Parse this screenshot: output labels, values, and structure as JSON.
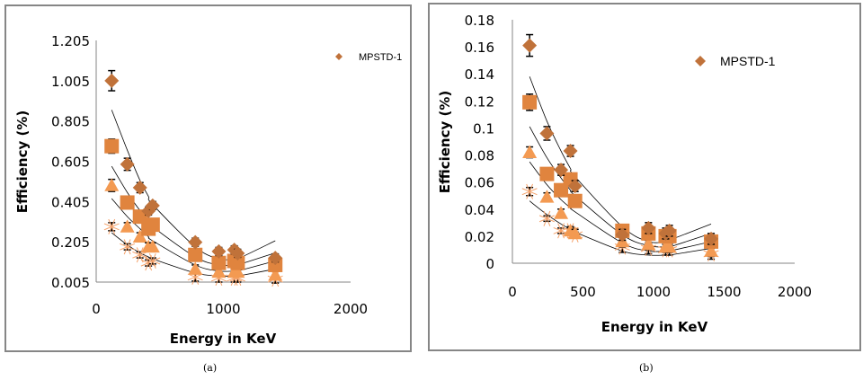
{
  "captions": {
    "a": "(a)",
    "b": "(b)"
  },
  "chart_data": [
    {
      "id": "a",
      "type": "scatter",
      "title": "",
      "xlabel": "Energy in KeV",
      "ylabel": "Efficiency (%)",
      "xlim": [
        0,
        2000
      ],
      "ylim": [
        0.005,
        1.205
      ],
      "xticks": [
        0,
        1000,
        2000
      ],
      "xtick_labels": [
        "0",
        "1000",
        "2000"
      ],
      "yticks": [
        0.005,
        0.205,
        0.405,
        0.605,
        0.805,
        1.005,
        1.205
      ],
      "ytick_labels": [
        "0.005",
        "0.205",
        "0.405",
        "0.605",
        "0.805",
        "1.005",
        "1.205"
      ],
      "grid": false,
      "legend": {
        "position": "top-right",
        "entries": [
          "MPSTD-1"
        ]
      },
      "x": [
        121.8,
        244.7,
        344.3,
        411.1,
        444.0,
        778.9,
        964.1,
        1085.8,
        1112.1,
        1408.0
      ],
      "series": [
        {
          "name": "MPSTD-1",
          "marker": "diamond",
          "color": "#c0723a",
          "values": [
            1.005,
            0.59,
            0.474,
            0.358,
            0.385,
            0.203,
            0.157,
            0.165,
            0.148,
            0.125
          ],
          "errors": [
            0.05,
            0.03,
            0.025,
            0.02,
            0.02,
            0.02,
            0.02,
            0.02,
            0.02,
            0.02
          ],
          "fit": [
            0.86,
            0.66,
            0.51,
            0.43,
            0.39,
            0.18,
            0.12,
            0.12,
            0.12,
            0.21
          ]
        },
        {
          "name": "",
          "marker": "square",
          "color": "#e0843e",
          "values": [
            0.68,
            0.4,
            0.33,
            0.27,
            0.29,
            0.14,
            0.1,
            0.11,
            0.1,
            0.09
          ],
          "errors": [
            0.035,
            0.02,
            0.02,
            0.02,
            0.02,
            0.02,
            0.02,
            0.02,
            0.02,
            0.02
          ],
          "fit": [
            0.58,
            0.45,
            0.36,
            0.31,
            0.28,
            0.13,
            0.09,
            0.09,
            0.09,
            0.15
          ]
        },
        {
          "name": "",
          "marker": "triangle",
          "color": "#f39a52",
          "values": [
            0.485,
            0.28,
            0.23,
            0.18,
            0.18,
            0.07,
            0.055,
            0.055,
            0.055,
            0.04
          ],
          "errors": [
            0.03,
            0.02,
            0.02,
            0.02,
            0.02,
            0.02,
            0.02,
            0.02,
            0.02,
            0.02
          ],
          "fit": [
            0.42,
            0.33,
            0.27,
            0.23,
            0.21,
            0.09,
            0.06,
            0.06,
            0.06,
            0.11
          ]
        },
        {
          "name": "",
          "marker": "asterisk",
          "color": "#f5a26a",
          "values": [
            0.28,
            0.18,
            0.14,
            0.1,
            0.11,
            0.03,
            0.025,
            0.025,
            0.025,
            0.02
          ],
          "errors": [
            0.02,
            0.015,
            0.015,
            0.015,
            0.015,
            0.02,
            0.02,
            0.02,
            0.02,
            0.02
          ],
          "fit": [
            0.25,
            0.19,
            0.15,
            0.13,
            0.12,
            0.05,
            0.035,
            0.035,
            0.035,
            0.07
          ]
        }
      ]
    },
    {
      "id": "b",
      "type": "scatter",
      "title": "",
      "xlabel": "Energy in KeV",
      "ylabel": "Efficiency (%)",
      "xlim": [
        0,
        2000
      ],
      "ylim": [
        0,
        0.18
      ],
      "xticks": [
        0,
        500,
        1000,
        1500,
        2000
      ],
      "xtick_labels": [
        "0",
        "500",
        "1000",
        "1500",
        "2000"
      ],
      "yticks": [
        0,
        0.02,
        0.04,
        0.06,
        0.08,
        0.1,
        0.12,
        0.14,
        0.16,
        0.18
      ],
      "ytick_labels": [
        "0",
        "0.02",
        "0.04",
        "0.06",
        "0.08",
        "0.1",
        "0.12",
        "0.14",
        "0.16",
        "0.18"
      ],
      "grid": false,
      "legend": {
        "position": "top-right",
        "entries": [
          "MPSTD-1"
        ]
      },
      "x": [
        121.8,
        244.7,
        344.3,
        411.1,
        444.0,
        778.9,
        964.1,
        1085.8,
        1112.1,
        1408.0
      ],
      "series": [
        {
          "name": "MPSTD-1",
          "marker": "diamond",
          "color": "#c0723a",
          "values": [
            0.161,
            0.096,
            0.069,
            0.083,
            0.057,
            0.021,
            0.026,
            0.022,
            0.024,
            0.018
          ],
          "errors": [
            0.008,
            0.005,
            0.004,
            0.004,
            0.004,
            0.004,
            0.004,
            0.004,
            0.004,
            0.004
          ],
          "fit": [
            0.138,
            0.105,
            0.083,
            0.07,
            0.064,
            0.027,
            0.016,
            0.016,
            0.017,
            0.029
          ]
        },
        {
          "name": "",
          "marker": "square",
          "color": "#e0843e",
          "values": [
            0.119,
            0.066,
            0.054,
            0.062,
            0.046,
            0.024,
            0.022,
            0.02,
            0.02,
            0.016
          ],
          "errors": [
            0.006,
            0.004,
            0.004,
            0.004,
            0.004,
            0.004,
            0.004,
            0.004,
            0.004,
            0.004
          ],
          "fit": [
            0.101,
            0.078,
            0.063,
            0.054,
            0.05,
            0.021,
            0.013,
            0.012,
            0.012,
            0.022
          ]
        },
        {
          "name": "",
          "marker": "triangle",
          "color": "#f39a52",
          "values": [
            0.082,
            0.049,
            0.037,
            0.024,
            0.022,
            0.016,
            0.014,
            0.012,
            0.012,
            0.009
          ],
          "errors": [
            0.004,
            0.003,
            0.003,
            0.003,
            0.003,
            0.004,
            0.004,
            0.004,
            0.004,
            0.004
          ],
          "fit": [
            0.075,
            0.058,
            0.047,
            0.041,
            0.038,
            0.015,
            0.009,
            0.009,
            0.009,
            0.016
          ]
        },
        {
          "name": "",
          "marker": "asterisk",
          "color": "#f5a26a",
          "values": [
            0.053,
            0.033,
            0.024,
            0.024,
            0.021,
            0.012,
            0.011,
            0.01,
            0.01,
            0.007
          ],
          "errors": [
            0.003,
            0.002,
            0.002,
            0.002,
            0.002,
            0.004,
            0.004,
            0.004,
            0.004,
            0.004
          ],
          "fit": [
            0.046,
            0.036,
            0.029,
            0.025,
            0.023,
            0.009,
            0.006,
            0.006,
            0.006,
            0.011
          ]
        }
      ]
    }
  ]
}
